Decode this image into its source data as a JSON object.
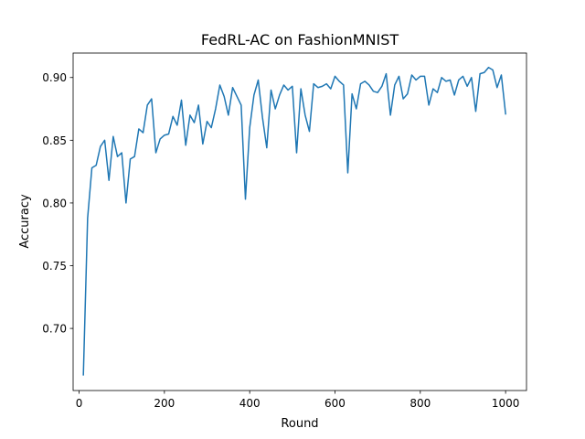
{
  "chart_data": {
    "type": "line",
    "title": "FedRL-AC on FashionMNIST",
    "xlabel": "Round",
    "ylabel": "Accuracy",
    "xlim": [
      -14,
      1049
    ],
    "ylim": [
      0.6505,
      0.9195
    ],
    "xticks": [
      0,
      200,
      400,
      600,
      800,
      1000
    ],
    "xtick_labels": [
      "0",
      "200",
      "400",
      "600",
      "800",
      "1000"
    ],
    "yticks": [
      0.7,
      0.75,
      0.8,
      0.85,
      0.9
    ],
    "ytick_labels": [
      "0.70",
      "0.75",
      "0.80",
      "0.85",
      "0.90"
    ],
    "grid": false,
    "legend": "none",
    "colors": {
      "line": "#1f77b4",
      "axes": "#000000",
      "background": "#ffffff"
    },
    "series": [
      {
        "x": [
          10,
          20,
          30,
          40,
          50,
          60,
          70,
          80,
          90,
          100,
          110,
          120,
          130,
          140,
          150,
          160,
          170,
          180,
          190,
          200,
          210,
          220,
          230,
          240,
          250,
          260,
          270,
          280,
          290,
          300,
          310,
          320,
          330,
          340,
          350,
          360,
          370,
          380,
          390,
          400,
          410,
          420,
          430,
          440,
          450,
          460,
          470,
          480,
          490,
          500,
          510,
          520,
          530,
          540,
          550,
          560,
          570,
          580,
          590,
          600,
          610,
          620,
          630,
          640,
          650,
          660,
          670,
          680,
          690,
          700,
          710,
          720,
          730,
          740,
          750,
          760,
          770,
          780,
          790,
          800,
          810,
          820,
          830,
          840,
          850,
          860,
          870,
          880,
          890,
          900,
          910,
          920,
          930,
          940,
          950,
          960,
          970,
          980,
          990,
          1000
        ],
        "values": [
          0.663,
          0.788,
          0.828,
          0.83,
          0.845,
          0.85,
          0.818,
          0.853,
          0.837,
          0.84,
          0.8,
          0.835,
          0.837,
          0.859,
          0.856,
          0.878,
          0.883,
          0.84,
          0.851,
          0.854,
          0.855,
          0.869,
          0.862,
          0.882,
          0.846,
          0.87,
          0.864,
          0.878,
          0.847,
          0.865,
          0.86,
          0.875,
          0.894,
          0.885,
          0.87,
          0.892,
          0.885,
          0.878,
          0.803,
          0.86,
          0.886,
          0.898,
          0.868,
          0.844,
          0.89,
          0.875,
          0.886,
          0.894,
          0.89,
          0.893,
          0.84,
          0.891,
          0.87,
          0.857,
          0.895,
          0.892,
          0.893,
          0.895,
          0.891,
          0.901,
          0.897,
          0.894,
          0.824,
          0.887,
          0.875,
          0.895,
          0.897,
          0.894,
          0.889,
          0.888,
          0.893,
          0.903,
          0.87,
          0.894,
          0.901,
          0.883,
          0.887,
          0.902,
          0.898,
          0.901,
          0.901,
          0.878,
          0.891,
          0.888,
          0.9,
          0.897,
          0.898,
          0.886,
          0.898,
          0.901,
          0.893,
          0.9,
          0.873,
          0.903,
          0.904,
          0.908,
          0.906,
          0.892,
          0.902,
          0.871
        ]
      }
    ]
  }
}
